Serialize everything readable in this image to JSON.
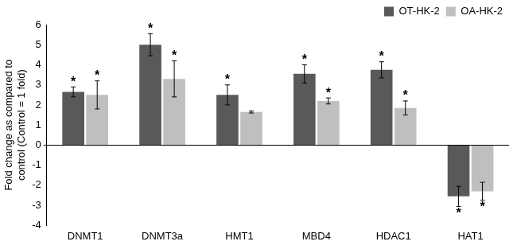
{
  "chart_data": {
    "type": "bar",
    "categories": [
      "DNMT1",
      "DNMT3a",
      "HMT1",
      "MBD4",
      "HDAC1",
      "HAT1"
    ],
    "y_label": [
      "Fold change as compared to",
      "control (Control = 1 fold)"
    ],
    "ylim": [
      -4,
      6
    ],
    "yticks": [
      -4,
      -3,
      -2,
      -1,
      0,
      1,
      2,
      3,
      4,
      5,
      6
    ],
    "grid": false,
    "legend": "top-right",
    "series": [
      {
        "name": "OT-HK-2",
        "color": "#595959",
        "values": [
          2.65,
          5.0,
          2.5,
          3.55,
          3.75,
          -2.55
        ],
        "errors": [
          0.25,
          0.55,
          0.5,
          0.45,
          0.4,
          0.5
        ],
        "annotations": [
          "*",
          "*",
          "*",
          "*",
          "*",
          "*"
        ]
      },
      {
        "name": "OA-HK-2",
        "color": "#bfbfbf",
        "values": [
          2.5,
          3.3,
          1.65,
          2.2,
          1.85,
          -2.3
        ],
        "errors": [
          0.7,
          0.9,
          0.05,
          0.15,
          0.35,
          0.45
        ],
        "annotations": [
          "*",
          "*",
          null,
          "*",
          "*",
          "*"
        ]
      }
    ]
  }
}
